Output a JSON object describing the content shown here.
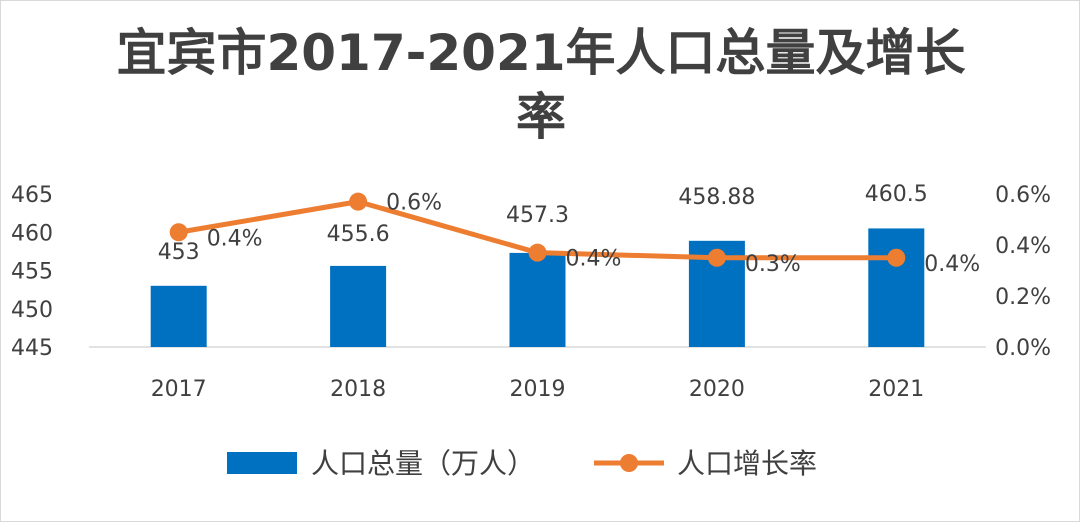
{
  "chart_data": {
    "type": "bar",
    "title_line1": "宜宾市2017-2021年人口总量及增长",
    "title_line2": "率",
    "categories": [
      "2017",
      "2018",
      "2019",
      "2020",
      "2021"
    ],
    "series": [
      {
        "name": "人口总量（万人）",
        "type": "bar",
        "axis": "left",
        "values": [
          453,
          455.6,
          457.3,
          458.88,
          460.5
        ],
        "labels": [
          "453",
          "455.6",
          "457.3",
          "458.88",
          "460.5"
        ],
        "color": "#0070c0"
      },
      {
        "name": "人口增长率",
        "type": "line",
        "axis": "right",
        "values": [
          0.0045,
          0.0057,
          0.0037,
          0.0035,
          0.0035
        ],
        "labels": [
          "0.4%",
          "0.6%",
          "0.4%",
          "0.3%",
          "0.4%"
        ],
        "color": "#ed7d31"
      }
    ],
    "y_left": {
      "ylim": [
        445,
        465
      ],
      "ticks": [
        "445",
        "450",
        "455",
        "460",
        "465"
      ]
    },
    "y_right": {
      "ylim": [
        0,
        0.006
      ],
      "ticks": [
        "0.0%",
        "0.2%",
        "0.4%",
        "0.6%"
      ]
    },
    "grid": false,
    "legend_position": "bottom"
  }
}
